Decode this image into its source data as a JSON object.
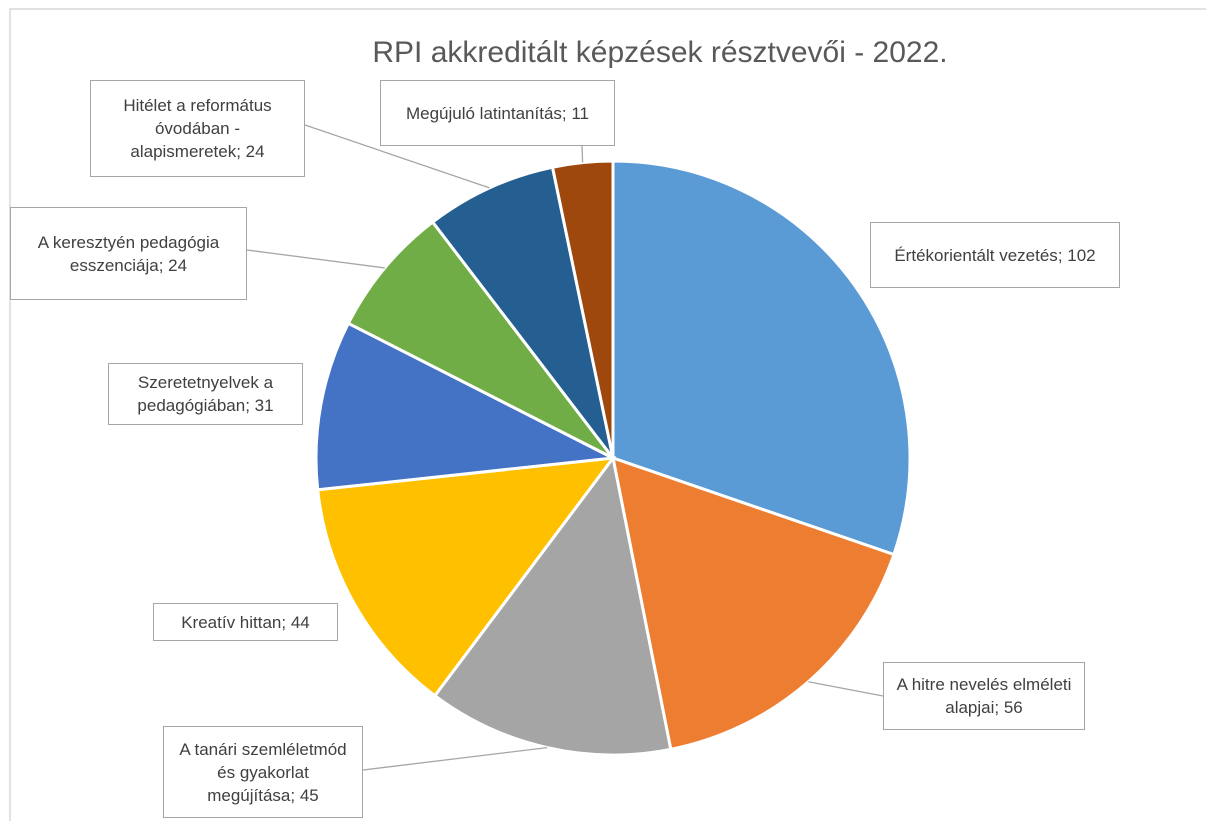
{
  "chart_data": {
    "type": "pie",
    "title": "RPI akkreditált képzések résztvevői - 2022.",
    "categories": [
      "Értékorientált vezetés",
      "A hitre nevelés elméleti alapjai",
      "A tanári szemléletmód és gyakorlat megújítása",
      "Kreatív hittan",
      "Szeretetnyelvek a pedagógiában",
      "A keresztyén pedagógia esszenciája",
      "Hitélet a református óvodában - alapismeretek",
      "Megújuló latintanítás"
    ],
    "values": [
      102,
      56,
      45,
      44,
      31,
      24,
      24,
      11
    ],
    "colors": [
      "#5B9BD5",
      "#ED7D31",
      "#A5A5A5",
      "#FFC000",
      "#4472C4",
      "#70AD47",
      "#255E91",
      "#9E480E"
    ],
    "data_label_separator": "; "
  }
}
